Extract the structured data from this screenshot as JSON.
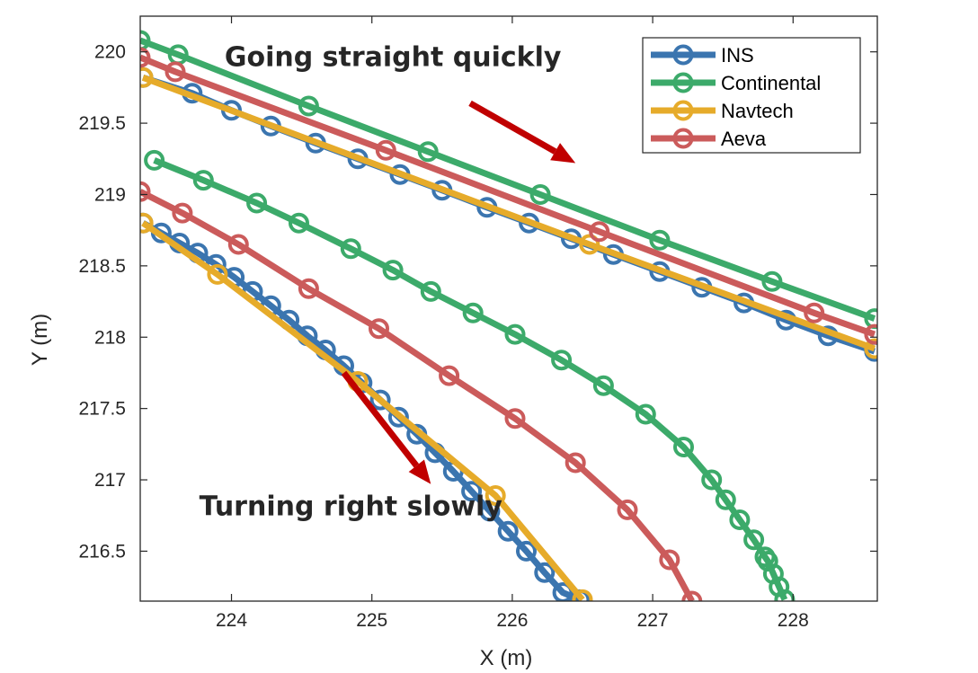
{
  "chart_data": {
    "type": "line",
    "title": "",
    "xlabel": "X (m)",
    "ylabel": "Y (m)",
    "xlim": [
      223.35,
      228.6
    ],
    "ylim": [
      216.15,
      220.25
    ],
    "xticks": [
      224,
      225,
      226,
      227,
      228
    ],
    "yticks": [
      216.5,
      217,
      217.5,
      218,
      218.5,
      219,
      219.5,
      220
    ],
    "xtick_labels": [
      "224",
      "225",
      "226",
      "227",
      "228"
    ],
    "ytick_labels": [
      "216.5",
      "217",
      "217.5",
      "218",
      "218.5",
      "219",
      "219.5",
      "220"
    ],
    "grid": false,
    "legend_location": "top-right",
    "series": [
      {
        "name": "INS",
        "color": "#3b75af",
        "segments": [
          [
            [
              223.37,
              219.82
            ],
            [
              223.72,
              219.71
            ],
            [
              224.0,
              219.59
            ],
            [
              224.28,
              219.48
            ],
            [
              224.6,
              219.36
            ],
            [
              224.9,
              219.25
            ],
            [
              225.2,
              219.14
            ],
            [
              225.5,
              219.03
            ],
            [
              225.82,
              218.91
            ],
            [
              226.12,
              218.8
            ],
            [
              226.42,
              218.69
            ],
            [
              226.72,
              218.58
            ],
            [
              227.05,
              218.46
            ],
            [
              227.35,
              218.35
            ],
            [
              227.65,
              218.24
            ],
            [
              227.95,
              218.12
            ],
            [
              228.25,
              218.01
            ],
            [
              228.58,
              217.9
            ]
          ],
          [
            [
              223.37,
              218.8
            ],
            [
              223.5,
              218.73
            ],
            [
              223.63,
              218.66
            ],
            [
              223.76,
              218.59
            ],
            [
              223.89,
              218.51
            ],
            [
              224.02,
              218.42
            ],
            [
              224.15,
              218.32
            ],
            [
              224.28,
              218.22
            ],
            [
              224.41,
              218.12
            ],
            [
              224.54,
              218.01
            ],
            [
              224.67,
              217.91
            ],
            [
              224.8,
              217.8
            ],
            [
              224.93,
              217.68
            ],
            [
              225.06,
              217.56
            ],
            [
              225.19,
              217.44
            ],
            [
              225.32,
              217.32
            ],
            [
              225.45,
              217.19
            ],
            [
              225.58,
              217.06
            ],
            [
              225.71,
              216.92
            ],
            [
              225.84,
              216.78
            ],
            [
              225.97,
              216.64
            ],
            [
              226.1,
              216.5
            ],
            [
              226.23,
              216.35
            ],
            [
              226.36,
              216.21
            ],
            [
              226.48,
              216.16
            ]
          ]
        ]
      },
      {
        "name": "Continental",
        "color": "#3caa6a",
        "segments": [
          [
            [
              223.35,
              220.08
            ],
            [
              223.62,
              219.98
            ],
            [
              224.55,
              219.62
            ],
            [
              225.4,
              219.3
            ],
            [
              226.2,
              219.0
            ],
            [
              227.05,
              218.68
            ],
            [
              227.85,
              218.39
            ],
            [
              228.58,
              218.13
            ]
          ],
          [
            [
              223.45,
              219.24
            ],
            [
              223.8,
              219.1
            ],
            [
              224.18,
              218.94
            ],
            [
              224.48,
              218.8
            ],
            [
              224.85,
              218.62
            ],
            [
              225.15,
              218.47
            ],
            [
              225.42,
              218.32
            ],
            [
              225.72,
              218.17
            ],
            [
              226.02,
              218.02
            ],
            [
              226.35,
              217.84
            ],
            [
              226.65,
              217.66
            ],
            [
              226.95,
              217.46
            ],
            [
              227.22,
              217.23
            ],
            [
              227.42,
              217.0
            ],
            [
              227.52,
              216.86
            ],
            [
              227.62,
              216.72
            ],
            [
              227.72,
              216.58
            ],
            [
              227.8,
              216.46
            ],
            [
              227.82,
              216.43
            ],
            [
              227.86,
              216.34
            ],
            [
              227.9,
              216.25
            ],
            [
              227.94,
              216.16
            ]
          ]
        ]
      },
      {
        "name": "Navtech",
        "color": "#e6ab2a",
        "segments": [
          [
            [
              223.37,
              219.82
            ],
            [
              226.55,
              218.65
            ],
            [
              228.58,
              217.92
            ]
          ],
          [
            [
              223.37,
              218.8
            ],
            [
              223.9,
              218.44
            ],
            [
              224.9,
              217.69
            ],
            [
              225.88,
              216.89
            ],
            [
              226.5,
              216.16
            ]
          ]
        ]
      },
      {
        "name": "Aeva",
        "color": "#cb5b5b",
        "segments": [
          [
            [
              223.35,
              219.96
            ],
            [
              223.6,
              219.86
            ],
            [
              225.1,
              219.31
            ],
            [
              226.62,
              218.74
            ],
            [
              228.15,
              218.17
            ],
            [
              228.58,
              218.02
            ]
          ],
          [
            [
              223.35,
              219.02
            ],
            [
              223.65,
              218.87
            ],
            [
              224.05,
              218.65
            ],
            [
              224.55,
              218.34
            ],
            [
              225.05,
              218.06
            ],
            [
              225.55,
              217.73
            ],
            [
              226.02,
              217.43
            ],
            [
              226.45,
              217.12
            ],
            [
              226.82,
              216.79
            ],
            [
              227.12,
              216.44
            ],
            [
              227.28,
              216.15
            ]
          ]
        ]
      }
    ],
    "annotations": [
      {
        "text": "Going straight quickly",
        "x": 225.15,
        "y": 219.9,
        "arrow_from": [
          225.7,
          219.64
        ],
        "arrow_to": [
          226.45,
          219.22
        ]
      },
      {
        "text": "Turning right slowly",
        "x": 224.85,
        "y": 216.75,
        "arrow_from": [
          224.8,
          217.75
        ],
        "arrow_to": [
          225.42,
          216.97
        ]
      }
    ]
  },
  "arrow_color": "#c00000"
}
